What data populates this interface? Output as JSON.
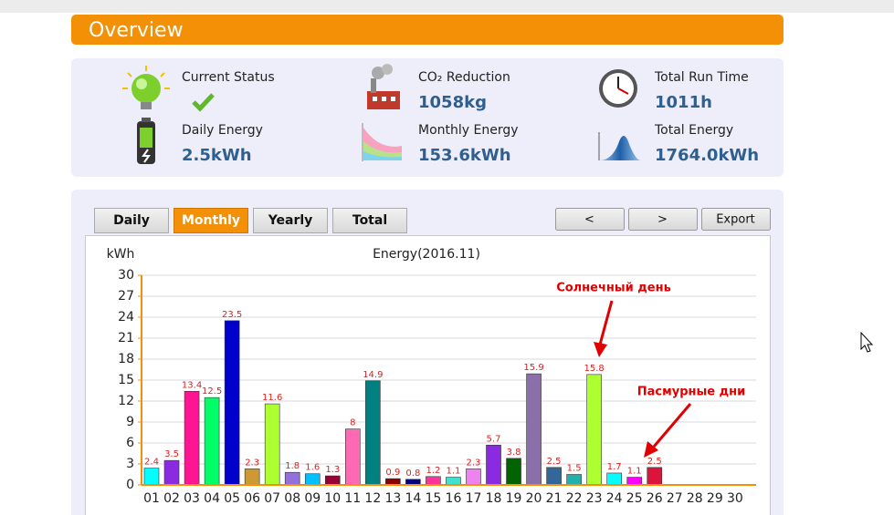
{
  "header": {
    "title": "Overview"
  },
  "summary": {
    "items": [
      {
        "label": "Current Status"
      },
      {
        "label": "CO₂ Reduction",
        "value": "1058kg"
      },
      {
        "label": "Total Run Time",
        "value": "1011h"
      },
      {
        "label": "Daily Energy",
        "value": "2.5kWh"
      },
      {
        "label": "Monthly Energy",
        "value": "153.6kWh"
      },
      {
        "label": "Total Energy",
        "value": "1764.0kWh"
      }
    ]
  },
  "tabs": [
    "Daily",
    "Monthly",
    "Yearly",
    "Total"
  ],
  "active_tab": "Monthly",
  "buttons": [
    "<",
    ">",
    "Export"
  ],
  "chart_data": {
    "type": "bar",
    "title": "Energy(2016.11)",
    "y_label": "kWh",
    "categories": [
      "01",
      "02",
      "03",
      "04",
      "05",
      "06",
      "07",
      "08",
      "09",
      "10",
      "11",
      "12",
      "13",
      "14",
      "15",
      "16",
      "17",
      "18",
      "19",
      "20",
      "21",
      "22",
      "23",
      "24",
      "25",
      "26",
      "27",
      "28",
      "29",
      "30"
    ],
    "values": [
      2.4,
      3.5,
      13.4,
      12.5,
      23.5,
      2.3,
      11.6,
      1.8,
      1.6,
      1.3,
      8,
      14.9,
      0.9,
      0.8,
      1.2,
      1.1,
      2.3,
      5.7,
      3.8,
      15.9,
      2.5,
      1.5,
      15.8,
      1.7,
      1.1,
      2.5,
      null,
      null,
      null,
      null
    ],
    "colors": [
      "#00ffff",
      "#8a2be2",
      "#ff1493",
      "#00ff66",
      "#0000cd",
      "#cc9933",
      "#adff2f",
      "#9370db",
      "#00bfff",
      "#990033",
      "#ff69b4",
      "#008080",
      "#8b0000",
      "#000080",
      "#ff3399",
      "#40e0d0",
      "#ee82ee",
      "#8a2be2",
      "#006400",
      "#8b6fa8",
      "#336699",
      "#20b2aa",
      "#adff2f",
      "#00ffff",
      "#ff00ff",
      "#dc143c",
      null,
      null,
      null,
      null
    ],
    "ylim": [
      0,
      30
    ],
    "yticks": [
      0,
      3,
      6,
      9,
      12,
      15,
      18,
      21,
      24,
      27,
      30
    ],
    "grid": true,
    "annotations": [
      "Солнечный день",
      "Пасмурные дни"
    ]
  }
}
